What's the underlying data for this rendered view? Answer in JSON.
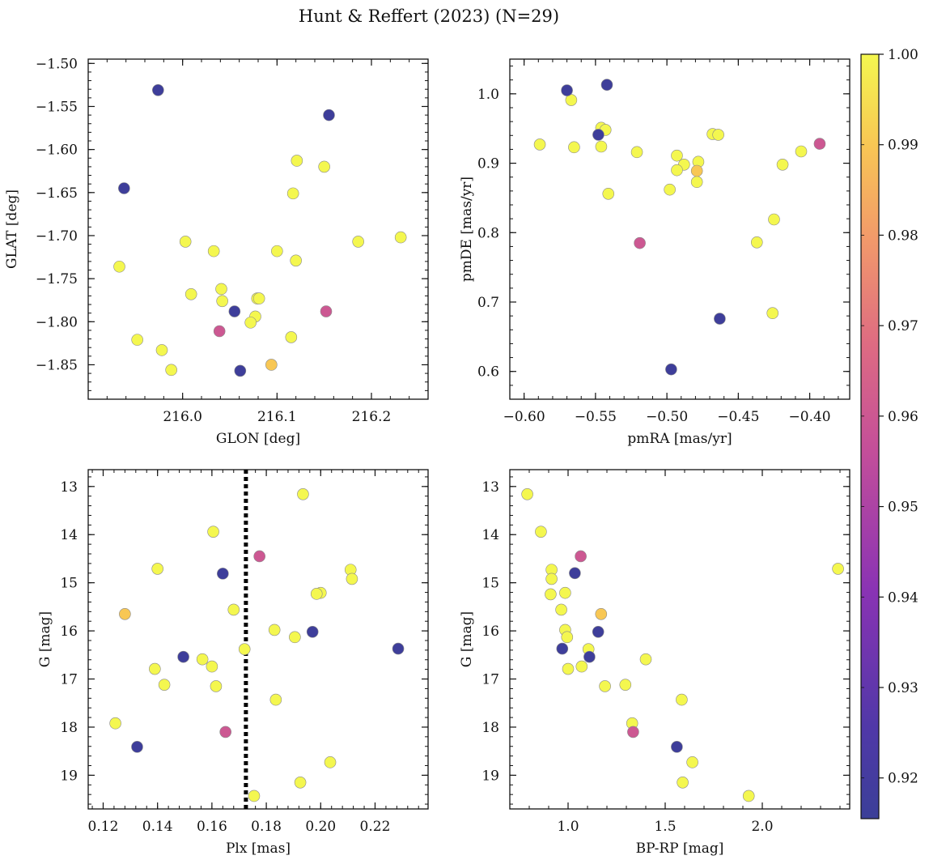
{
  "chart_data": [
    {
      "type": "scatter",
      "panel": "top-left",
      "xlabel": "GLON [deg]",
      "ylabel": "GLAT [deg]",
      "xlim": [
        215.9,
        216.26
      ],
      "ylim": [
        -1.89,
        -1.495
      ],
      "y_inverted": false,
      "xticks": [
        216.0,
        216.1,
        216.2
      ],
      "xtick_labels": [
        "216.0",
        "216.1",
        "216.2"
      ],
      "yticks": [
        -1.5,
        -1.55,
        -1.6,
        -1.65,
        -1.7,
        -1.75,
        -1.8,
        -1.85
      ],
      "ytick_labels": [
        "−1.50",
        "−1.55",
        "−1.60",
        "−1.65",
        "−1.70",
        "−1.75",
        "−1.80",
        "−1.85"
      ],
      "points": [
        {
          "x": 215.974,
          "y": -1.531,
          "c": 0.917
        },
        {
          "x": 216.155,
          "y": -1.56,
          "c": 0.917
        },
        {
          "x": 215.938,
          "y": -1.645,
          "c": 0.917
        },
        {
          "x": 216.055,
          "y": -1.788,
          "c": 0.917
        },
        {
          "x": 216.061,
          "y": -1.857,
          "c": 0.917
        },
        {
          "x": 216.039,
          "y": -1.811,
          "c": 0.96
        },
        {
          "x": 216.152,
          "y": -1.788,
          "c": 0.96
        },
        {
          "x": 216.094,
          "y": -1.85,
          "c": 0.99
        },
        {
          "x": 216.121,
          "y": -1.613,
          "c": 1.0
        },
        {
          "x": 216.15,
          "y": -1.62,
          "c": 1.0
        },
        {
          "x": 216.117,
          "y": -1.651,
          "c": 1.0
        },
        {
          "x": 216.003,
          "y": -1.707,
          "c": 1.0
        },
        {
          "x": 216.033,
          "y": -1.718,
          "c": 1.0
        },
        {
          "x": 216.1,
          "y": -1.718,
          "c": 1.0
        },
        {
          "x": 216.186,
          "y": -1.707,
          "c": 1.0
        },
        {
          "x": 216.231,
          "y": -1.702,
          "c": 1.0
        },
        {
          "x": 215.933,
          "y": -1.736,
          "c": 1.0
        },
        {
          "x": 216.12,
          "y": -1.729,
          "c": 1.0
        },
        {
          "x": 216.009,
          "y": -1.768,
          "c": 1.0
        },
        {
          "x": 216.041,
          "y": -1.762,
          "c": 1.0
        },
        {
          "x": 216.042,
          "y": -1.776,
          "c": 1.0
        },
        {
          "x": 216.079,
          "y": -1.773,
          "c": 1.0
        },
        {
          "x": 216.081,
          "y": -1.773,
          "c": 1.0
        },
        {
          "x": 216.077,
          "y": -1.794,
          "c": 1.0
        },
        {
          "x": 216.072,
          "y": -1.801,
          "c": 1.0
        },
        {
          "x": 216.115,
          "y": -1.818,
          "c": 1.0
        },
        {
          "x": 215.952,
          "y": -1.821,
          "c": 1.0
        },
        {
          "x": 215.978,
          "y": -1.833,
          "c": 1.0
        },
        {
          "x": 215.988,
          "y": -1.856,
          "c": 1.0
        }
      ]
    },
    {
      "type": "scatter",
      "panel": "top-right",
      "xlabel": "pmRA [mas/yr]",
      "ylabel": "pmDE [mas/yr]",
      "xlim": [
        -0.61,
        -0.372
      ],
      "ylim": [
        0.56,
        1.05
      ],
      "y_inverted": false,
      "xticks": [
        -0.6,
        -0.55,
        -0.5,
        -0.45,
        -0.4
      ],
      "xtick_labels": [
        "−0.60",
        "−0.55",
        "−0.50",
        "−0.45",
        "−0.40"
      ],
      "yticks": [
        0.6,
        0.7,
        0.8,
        0.9,
        1.0
      ],
      "ytick_labels": [
        "0.6",
        "0.7",
        "0.8",
        "0.9",
        "1.0"
      ],
      "points": [
        {
          "x": -0.57,
          "y": 1.005,
          "c": 0.917
        },
        {
          "x": -0.542,
          "y": 1.013,
          "c": 0.917
        },
        {
          "x": -0.548,
          "y": 0.941,
          "c": 0.917
        },
        {
          "x": -0.463,
          "y": 0.676,
          "c": 0.917
        },
        {
          "x": -0.497,
          "y": 0.603,
          "c": 0.917
        },
        {
          "x": -0.519,
          "y": 0.785,
          "c": 0.96
        },
        {
          "x": -0.393,
          "y": 0.928,
          "c": 0.96
        },
        {
          "x": -0.479,
          "y": 0.889,
          "c": 0.99
        },
        {
          "x": -0.567,
          "y": 0.991,
          "c": 1.0
        },
        {
          "x": -0.589,
          "y": 0.927,
          "c": 1.0
        },
        {
          "x": -0.565,
          "y": 0.923,
          "c": 1.0
        },
        {
          "x": -0.546,
          "y": 0.951,
          "c": 1.0
        },
        {
          "x": -0.543,
          "y": 0.948,
          "c": 1.0
        },
        {
          "x": -0.546,
          "y": 0.924,
          "c": 1.0
        },
        {
          "x": -0.521,
          "y": 0.916,
          "c": 1.0
        },
        {
          "x": -0.541,
          "y": 0.856,
          "c": 1.0
        },
        {
          "x": -0.493,
          "y": 0.911,
          "c": 1.0
        },
        {
          "x": -0.488,
          "y": 0.898,
          "c": 1.0
        },
        {
          "x": -0.493,
          "y": 0.89,
          "c": 1.0
        },
        {
          "x": -0.498,
          "y": 0.862,
          "c": 1.0
        },
        {
          "x": -0.468,
          "y": 0.942,
          "c": 1.0
        },
        {
          "x": -0.464,
          "y": 0.941,
          "c": 1.0
        },
        {
          "x": -0.478,
          "y": 0.902,
          "c": 1.0
        },
        {
          "x": -0.479,
          "y": 0.873,
          "c": 1.0
        },
        {
          "x": -0.406,
          "y": 0.917,
          "c": 1.0
        },
        {
          "x": -0.419,
          "y": 0.898,
          "c": 1.0
        },
        {
          "x": -0.425,
          "y": 0.819,
          "c": 1.0
        },
        {
          "x": -0.437,
          "y": 0.786,
          "c": 1.0
        },
        {
          "x": -0.426,
          "y": 0.684,
          "c": 1.0
        }
      ]
    },
    {
      "type": "scatter",
      "panel": "bottom-left",
      "xlabel": "Plx [mas]",
      "ylabel": "G [mag]",
      "xlim": [
        0.1145,
        0.2395
      ],
      "ylim": [
        12.65,
        19.7
      ],
      "y_inverted": true,
      "vline": {
        "x": 0.1725,
        "style": "dotted"
      },
      "xticks": [
        0.12,
        0.14,
        0.16,
        0.18,
        0.2,
        0.22
      ],
      "xtick_labels": [
        "0.12",
        "0.14",
        "0.16",
        "0.18",
        "0.20",
        "0.22"
      ],
      "yticks": [
        13,
        14,
        15,
        16,
        17,
        18,
        19
      ],
      "ytick_labels": [
        "13",
        "14",
        "15",
        "16",
        "17",
        "18",
        "19"
      ],
      "points": [
        {
          "x": 0.164,
          "y": 14.81,
          "c": 0.917
        },
        {
          "x": 0.197,
          "y": 16.02,
          "c": 0.917
        },
        {
          "x": 0.1495,
          "y": 16.54,
          "c": 0.917
        },
        {
          "x": 0.2285,
          "y": 16.37,
          "c": 0.917
        },
        {
          "x": 0.1325,
          "y": 18.41,
          "c": 0.917
        },
        {
          "x": 0.1775,
          "y": 14.45,
          "c": 0.96
        },
        {
          "x": 0.165,
          "y": 18.1,
          "c": 0.96
        },
        {
          "x": 0.128,
          "y": 15.65,
          "c": 0.99
        },
        {
          "x": 0.1935,
          "y": 13.16,
          "c": 1.0
        },
        {
          "x": 0.1605,
          "y": 13.94,
          "c": 1.0
        },
        {
          "x": 0.14,
          "y": 14.71,
          "c": 1.0
        },
        {
          "x": 0.211,
          "y": 14.73,
          "c": 1.0
        },
        {
          "x": 0.2115,
          "y": 14.92,
          "c": 1.0
        },
        {
          "x": 0.2,
          "y": 15.21,
          "c": 1.0
        },
        {
          "x": 0.1985,
          "y": 15.23,
          "c": 1.0
        },
        {
          "x": 0.168,
          "y": 15.56,
          "c": 1.0
        },
        {
          "x": 0.183,
          "y": 15.98,
          "c": 1.0
        },
        {
          "x": 0.1905,
          "y": 16.13,
          "c": 1.0
        },
        {
          "x": 0.172,
          "y": 16.38,
          "c": 1.0
        },
        {
          "x": 0.1565,
          "y": 16.59,
          "c": 1.0
        },
        {
          "x": 0.16,
          "y": 16.74,
          "c": 1.0
        },
        {
          "x": 0.139,
          "y": 16.79,
          "c": 1.0
        },
        {
          "x": 0.1425,
          "y": 17.12,
          "c": 1.0
        },
        {
          "x": 0.1615,
          "y": 17.15,
          "c": 1.0
        },
        {
          "x": 0.1835,
          "y": 17.43,
          "c": 1.0
        },
        {
          "x": 0.1245,
          "y": 17.92,
          "c": 1.0
        },
        {
          "x": 0.2035,
          "y": 18.73,
          "c": 1.0
        },
        {
          "x": 0.1925,
          "y": 19.15,
          "c": 1.0
        },
        {
          "x": 0.1755,
          "y": 19.43,
          "c": 1.0
        }
      ]
    },
    {
      "type": "scatter",
      "panel": "bottom-right",
      "xlabel": "BP-RP [mag]",
      "ylabel": "G [mag]",
      "xlim": [
        0.7,
        2.45
      ],
      "ylim": [
        12.65,
        19.7
      ],
      "y_inverted": true,
      "xticks": [
        1.0,
        1.5,
        2.0
      ],
      "xtick_labels": [
        "1.0",
        "1.5",
        "2.0"
      ],
      "yticks": [
        13,
        14,
        15,
        16,
        17,
        18,
        19
      ],
      "ytick_labels": [
        "13",
        "14",
        "15",
        "16",
        "17",
        "18",
        "19"
      ],
      "points": [
        {
          "x": 1.035,
          "y": 14.8,
          "c": 0.917
        },
        {
          "x": 1.155,
          "y": 16.02,
          "c": 0.917
        },
        {
          "x": 0.97,
          "y": 16.37,
          "c": 0.917
        },
        {
          "x": 1.11,
          "y": 16.54,
          "c": 0.917
        },
        {
          "x": 1.56,
          "y": 18.41,
          "c": 0.917
        },
        {
          "x": 1.065,
          "y": 14.45,
          "c": 0.96
        },
        {
          "x": 1.335,
          "y": 18.1,
          "c": 0.96
        },
        {
          "x": 1.17,
          "y": 15.65,
          "c": 0.99
        },
        {
          "x": 0.79,
          "y": 13.16,
          "c": 1.0
        },
        {
          "x": 0.86,
          "y": 13.94,
          "c": 1.0
        },
        {
          "x": 0.915,
          "y": 14.73,
          "c": 1.0
        },
        {
          "x": 0.915,
          "y": 14.92,
          "c": 1.0
        },
        {
          "x": 0.91,
          "y": 15.24,
          "c": 1.0
        },
        {
          "x": 0.985,
          "y": 15.21,
          "c": 1.0
        },
        {
          "x": 0.965,
          "y": 15.56,
          "c": 1.0
        },
        {
          "x": 0.985,
          "y": 15.98,
          "c": 1.0
        },
        {
          "x": 0.995,
          "y": 16.13,
          "c": 1.0
        },
        {
          "x": 1.105,
          "y": 16.38,
          "c": 1.0
        },
        {
          "x": 1.4,
          "y": 16.59,
          "c": 1.0
        },
        {
          "x": 1.07,
          "y": 16.74,
          "c": 1.0
        },
        {
          "x": 1.0,
          "y": 16.79,
          "c": 1.0
        },
        {
          "x": 1.295,
          "y": 17.12,
          "c": 1.0
        },
        {
          "x": 1.19,
          "y": 17.15,
          "c": 1.0
        },
        {
          "x": 1.585,
          "y": 17.43,
          "c": 1.0
        },
        {
          "x": 1.33,
          "y": 17.92,
          "c": 1.0
        },
        {
          "x": 1.64,
          "y": 18.73,
          "c": 1.0
        },
        {
          "x": 1.59,
          "y": 19.15,
          "c": 1.0
        },
        {
          "x": 1.93,
          "y": 19.43,
          "c": 1.0
        },
        {
          "x": 2.39,
          "y": 14.71,
          "c": 1.0
        }
      ]
    }
  ],
  "figure": {
    "title": "Hunt & Reffert (2023) (N=29)",
    "colormap": "plasma",
    "colorbar": {
      "range": [
        0.9155,
        1.0
      ],
      "ticks": [
        0.92,
        0.93,
        0.94,
        0.95,
        0.96,
        0.97,
        0.98,
        0.99,
        1.0
      ],
      "tick_labels": [
        "0.92",
        "0.93",
        "0.94",
        "0.95",
        "0.96",
        "0.97",
        "0.98",
        "0.99",
        "1.00"
      ]
    },
    "marker_edge_color": "#8a8a8a",
    "vline_color": "#000000"
  }
}
